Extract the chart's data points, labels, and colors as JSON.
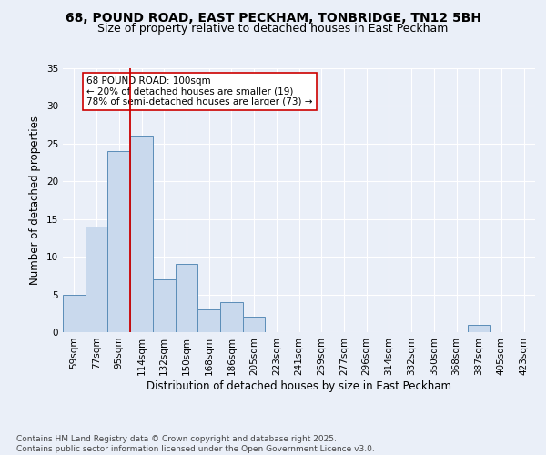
{
  "title1": "68, POUND ROAD, EAST PECKHAM, TONBRIDGE, TN12 5BH",
  "title2": "Size of property relative to detached houses in East Peckham",
  "xlabel": "Distribution of detached houses by size in East Peckham",
  "ylabel": "Number of detached properties",
  "categories": [
    "59sqm",
    "77sqm",
    "95sqm",
    "114sqm",
    "132sqm",
    "150sqm",
    "168sqm",
    "186sqm",
    "205sqm",
    "223sqm",
    "241sqm",
    "259sqm",
    "277sqm",
    "296sqm",
    "314sqm",
    "332sqm",
    "350sqm",
    "368sqm",
    "387sqm",
    "405sqm",
    "423sqm"
  ],
  "values": [
    5,
    14,
    24,
    26,
    7,
    9,
    3,
    4,
    2,
    0,
    0,
    0,
    0,
    0,
    0,
    0,
    0,
    0,
    1,
    0,
    0
  ],
  "bar_color": "#c9d9ed",
  "bar_edge_color": "#5b8db8",
  "vline_color": "#cc0000",
  "vline_x_index": 2,
  "annotation_text": "68 POUND ROAD: 100sqm\n← 20% of detached houses are smaller (19)\n78% of semi-detached houses are larger (73) →",
  "annotation_box_color": "#ffffff",
  "annotation_box_edge": "#cc0000",
  "ylim": [
    0,
    35
  ],
  "yticks": [
    0,
    5,
    10,
    15,
    20,
    25,
    30,
    35
  ],
  "bg_color": "#eaeff8",
  "plot_bg_color": "#eaeff8",
  "footer": "Contains HM Land Registry data © Crown copyright and database right 2025.\nContains public sector information licensed under the Open Government Licence v3.0.",
  "title1_fontsize": 10,
  "title2_fontsize": 9,
  "xlabel_fontsize": 8.5,
  "ylabel_fontsize": 8.5,
  "tick_fontsize": 7.5,
  "footer_fontsize": 6.5
}
